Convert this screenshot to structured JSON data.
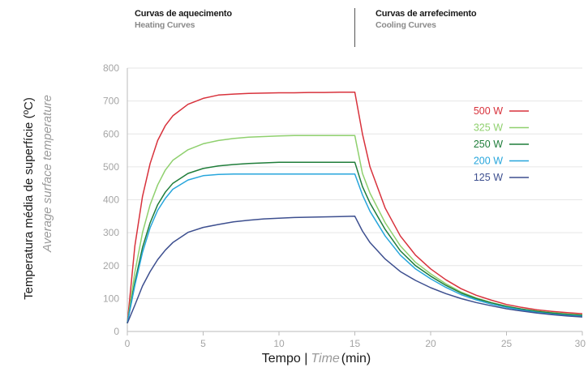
{
  "header": {
    "heating_pt": "Curvas de aquecimento",
    "heating_en": "Heating Curves",
    "cooling_pt": "Curvas de arrefecimento",
    "cooling_en": "Cooling Curves"
  },
  "colors": {
    "500 W": "#d8323c",
    "325 W": "#8fd06e",
    "250 W": "#1f7d3a",
    "200 W": "#27a6dc",
    "125 W": "#3d4f8f",
    "axis": "#bbbbbb"
  },
  "chart_data": {
    "type": "line",
    "title": "",
    "ylabel": "Temperatura média de superfície (ºC)",
    "ylabel_en": "Average surface temperature",
    "xlabel": "Tempo |",
    "xlabel_en": "Time",
    "xlabel_unit": "(min)",
    "xlim": [
      0,
      30
    ],
    "ylim": [
      0,
      800
    ],
    "xticks": [
      0,
      5,
      10,
      15,
      20,
      25,
      30
    ],
    "yticks": [
      0,
      100,
      200,
      300,
      400,
      500,
      600,
      700,
      800
    ],
    "grid": "horizontal",
    "legend_position": "right",
    "x": [
      0,
      0.5,
      1,
      1.5,
      2,
      2.5,
      3,
      4,
      5,
      6,
      7,
      8,
      9,
      10,
      11,
      12,
      13,
      14,
      15,
      15.5,
      16,
      17,
      18,
      19,
      20,
      21,
      22,
      23,
      24,
      25,
      26,
      27,
      28,
      29,
      30
    ],
    "series": [
      {
        "name": "500 W",
        "values": [
          25,
          260,
          410,
          510,
          580,
          625,
          655,
          690,
          708,
          718,
          721,
          723,
          724,
          725,
          725,
          726,
          726,
          727,
          727,
          600,
          500,
          375,
          290,
          232,
          190,
          157,
          130,
          110,
          95,
          82,
          73,
          66,
          61,
          57,
          54
        ]
      },
      {
        "name": "325 W",
        "values": [
          25,
          180,
          300,
          385,
          445,
          490,
          520,
          552,
          570,
          580,
          586,
          590,
          592,
          594,
          595,
          595,
          595,
          595,
          595,
          480,
          420,
          330,
          260,
          210,
          175,
          145,
          120,
          102,
          88,
          77,
          68,
          62,
          57,
          53,
          50
        ]
      },
      {
        "name": "250 W",
        "values": [
          25,
          150,
          255,
          330,
          385,
          423,
          450,
          480,
          495,
          503,
          507,
          510,
          512,
          514,
          514,
          514,
          514,
          514,
          514,
          440,
          390,
          310,
          245,
          200,
          168,
          140,
          117,
          100,
          87,
          76,
          68,
          61,
          56,
          52,
          49
        ]
      },
      {
        "name": "200 W",
        "values": [
          25,
          140,
          240,
          315,
          368,
          404,
          432,
          460,
          473,
          477,
          478,
          478,
          478,
          478,
          478,
          478,
          478,
          478,
          478,
          415,
          365,
          290,
          232,
          190,
          160,
          134,
          112,
          96,
          83,
          73,
          65,
          58,
          53,
          49,
          46
        ]
      },
      {
        "name": "125 W",
        "values": [
          25,
          80,
          138,
          182,
          218,
          247,
          270,
          301,
          316,
          325,
          333,
          338,
          342,
          344,
          346,
          347,
          348,
          349,
          350,
          305,
          270,
          220,
          182,
          155,
          133,
          115,
          100,
          88,
          78,
          69,
          62,
          56,
          51,
          47,
          44
        ]
      }
    ]
  }
}
